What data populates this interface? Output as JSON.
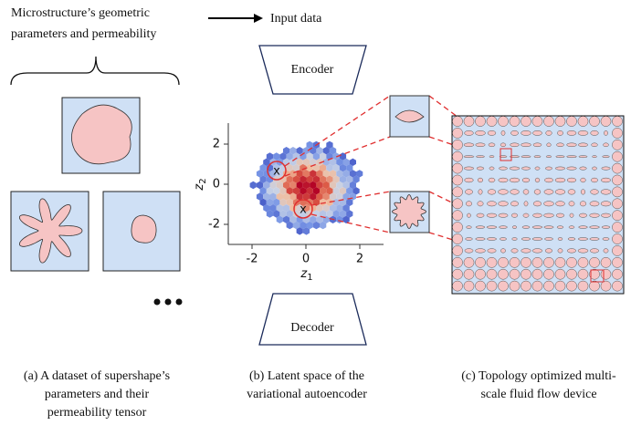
{
  "header": {
    "lines": [
      "Microstructure’s geometric",
      "parameters and permeability"
    ]
  },
  "legend": {
    "label": "Input data"
  },
  "encoder": {
    "label": "Encoder"
  },
  "decoder": {
    "label": "Decoder"
  },
  "latent_plot": {
    "xlabel": "z",
    "xlabel_sub": "1",
    "ylabel": "z",
    "ylabel_sub": "2",
    "xticks": [
      -2,
      0,
      2
    ],
    "yticks": [
      -2,
      0,
      2
    ]
  },
  "captions": [
    {
      "lines": [
        "(a) A dataset of supershape’s",
        "parameters and their",
        "permeability tensor"
      ]
    },
    {
      "lines": [
        "(b) Latent space of the",
        "variational autoencoder"
      ]
    },
    {
      "lines": [
        "(c) Topology optimized multi-",
        "scale fluid flow device"
      ]
    }
  ]
}
